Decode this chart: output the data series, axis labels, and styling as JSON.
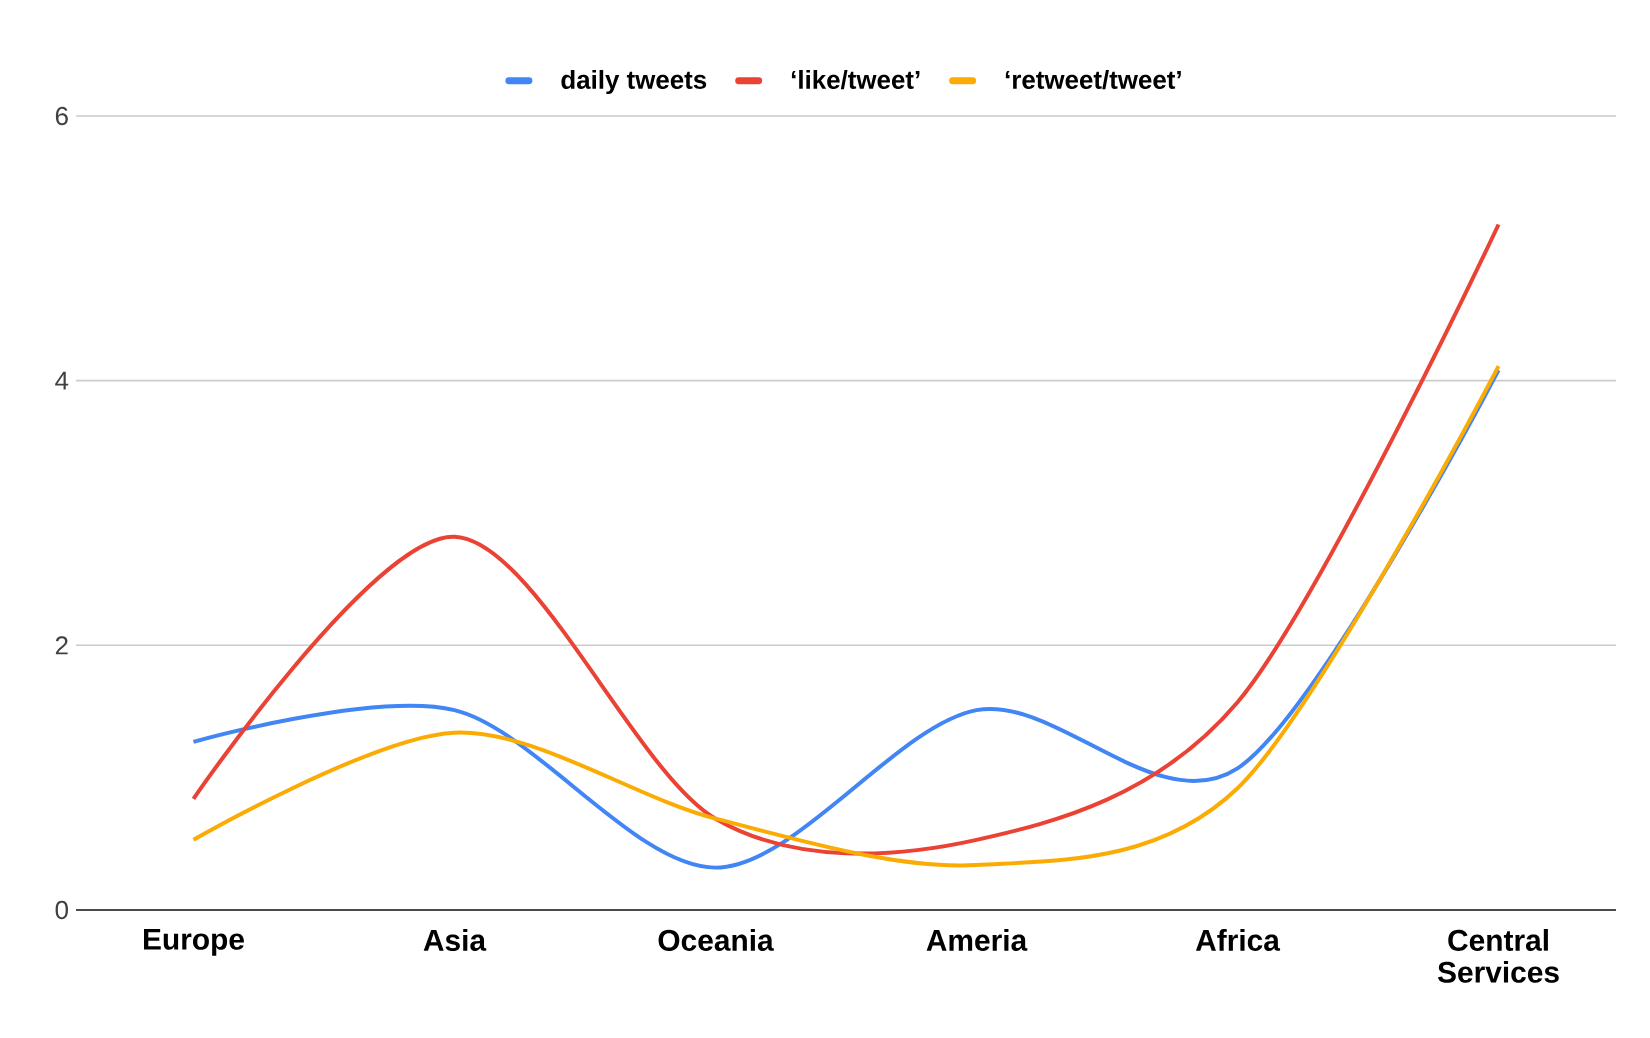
{
  "chart_data": {
    "type": "line",
    "categories": [
      "Europe",
      "Asia",
      "Oceania",
      "Ameria",
      "Africa",
      "Central Services"
    ],
    "series": [
      {
        "name": "daily tweets",
        "color": "#4285f4",
        "values": [
          1.27,
          1.51,
          0.32,
          1.51,
          1.07,
          4.08
        ]
      },
      {
        "name": "‘like/tweet’",
        "color": "#ea4335",
        "values": [
          0.84,
          2.82,
          0.69,
          0.53,
          1.57,
          5.18
        ]
      },
      {
        "name": "‘retweet/tweet’",
        "color": "#fbac04",
        "values": [
          0.53,
          1.34,
          0.69,
          0.34,
          0.92,
          4.11
        ]
      }
    ],
    "ylim": [
      0,
      6
    ],
    "yticks": [
      0,
      2,
      4,
      6
    ],
    "grid": "y",
    "legend": "top",
    "marker": "none",
    "line_style": "solid"
  }
}
